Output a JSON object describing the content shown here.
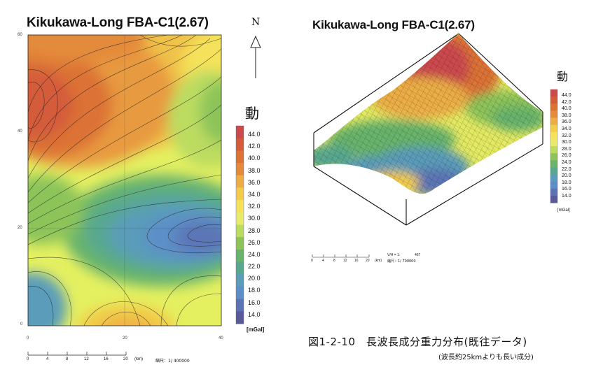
{
  "map2d": {
    "title": "Kikukawa-Long FBA-C1(2.67)",
    "y_ticks": [
      "60",
      "40",
      "20",
      "0"
    ],
    "x_ticks": [
      "0",
      "20",
      "40"
    ],
    "north_label": "N",
    "scale": {
      "ticks": [
        "0",
        "4",
        "8",
        "12",
        "16",
        "20"
      ],
      "unit": "(km)",
      "ratio": "縮尺：1/ 400000"
    }
  },
  "legend2d": {
    "header": "動",
    "unit": "[mGal]",
    "levels": [
      "44.0",
      "42.0",
      "40.0",
      "38.0",
      "36.0",
      "34.0",
      "32.0",
      "30.0",
      "28.0",
      "26.0",
      "24.0",
      "22.0",
      "20.0",
      "18.0",
      "16.0",
      "14.0"
    ]
  },
  "surface3d": {
    "title": "Kikukawa-Long FBA-C1(2.67)",
    "vh": "V/H = 1:",
    "vh_value": "467",
    "scale": {
      "ticks": [
        "0",
        "4",
        "8",
        "12",
        "16",
        "20"
      ],
      "unit": "(km)",
      "ratio": "縮尺：1/ 700000"
    }
  },
  "legend3d": {
    "header": "動",
    "unit": "[mGal]",
    "levels": [
      "44.0",
      "42.0",
      "40.0",
      "38.0",
      "36.0",
      "34.0",
      "32.0",
      "30.0",
      "28.0",
      "26.0",
      "24.0",
      "22.0",
      "20.0",
      "18.0",
      "16.0",
      "14.0"
    ]
  },
  "caption": {
    "main": "図1-2-10　長波長成分重力分布(既往データ)",
    "sub": "(波長約25kmよりも長い成分)"
  },
  "colors": {
    "scale": [
      "#cc4a4e",
      "#d45c3a",
      "#dc7234",
      "#e48a3a",
      "#ecae44",
      "#f2cc4a",
      "#f6e25a",
      "#e8ea6a",
      "#bcdc60",
      "#8cc45a",
      "#68b46c",
      "#58a890",
      "#5a9cba",
      "#5c8ec8",
      "#5c74b6",
      "#5a5a9a"
    ]
  }
}
